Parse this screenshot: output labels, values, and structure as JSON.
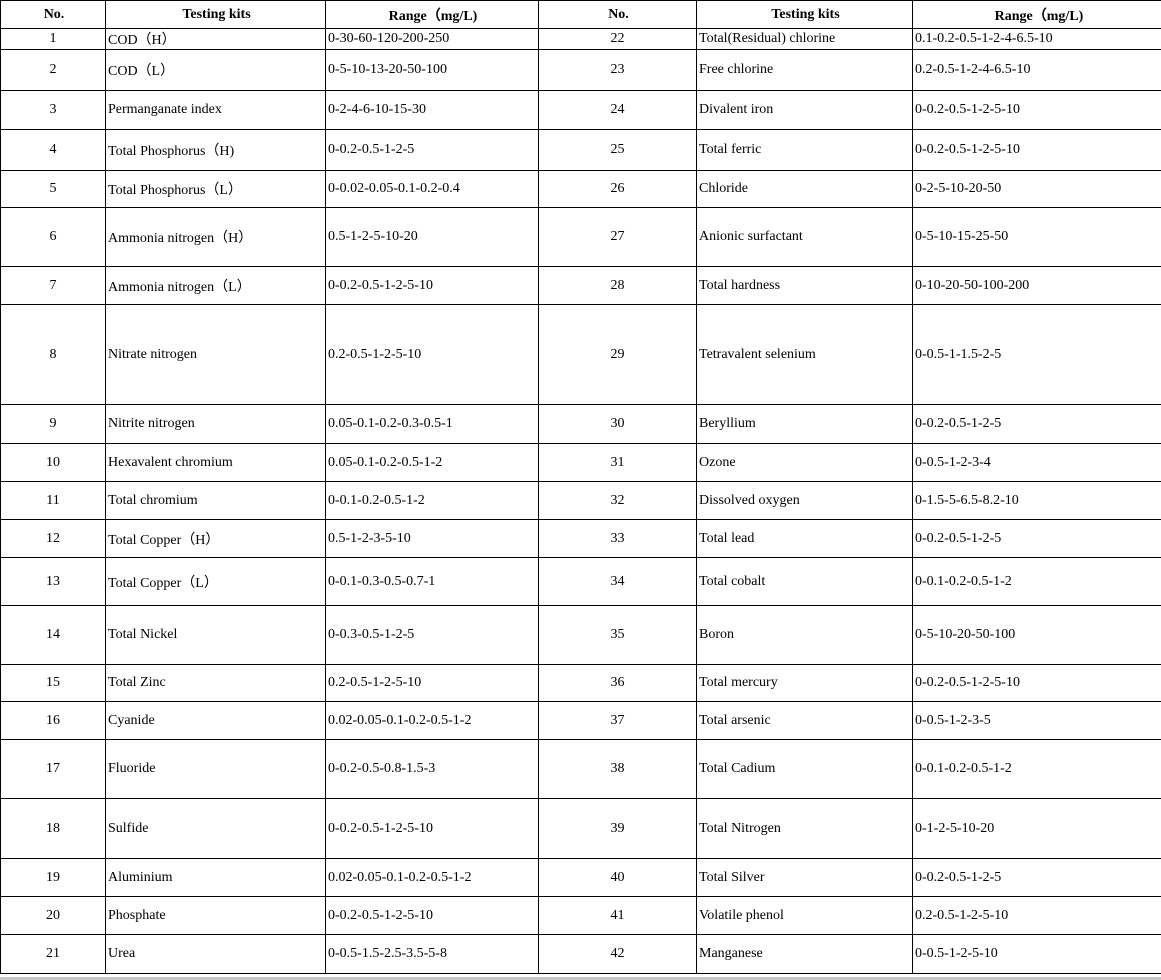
{
  "headers": {
    "no": "No.",
    "kit": "Testing kits",
    "range": "Range（mg/L)"
  },
  "rows": [
    {
      "l": {
        "no": "1",
        "kit": "COD（H）",
        "range": "0-30-60-120-200-250"
      },
      "r": {
        "no": "22",
        "kit": "Total(Residual) chlorine",
        "range": "0.1-0.2-0.5-1-2-4-6.5-10"
      }
    },
    {
      "l": {
        "no": "2",
        "kit": "COD（L）",
        "range": "0-5-10-13-20-50-100"
      },
      "r": {
        "no": "23",
        "kit": "Free chlorine",
        "range": "0.2-0.5-1-2-4-6.5-10"
      }
    },
    {
      "l": {
        "no": "3",
        "kit": "Permanganate index",
        "range": "0-2-4-6-10-15-30"
      },
      "r": {
        "no": "24",
        "kit": "Divalent iron",
        "range": "0-0.2-0.5-1-2-5-10"
      }
    },
    {
      "l": {
        "no": "4",
        "kit": "Total Phosphorus（H)",
        "range": "0-0.2-0.5-1-2-5"
      },
      "r": {
        "no": "25",
        "kit": "Total ferric",
        "range": "0-0.2-0.5-1-2-5-10"
      }
    },
    {
      "l": {
        "no": "5",
        "kit": "Total Phosphorus（L）",
        "range": "0-0.02-0.05-0.1-0.2-0.4"
      },
      "r": {
        "no": "26",
        "kit": "Chloride",
        "range": "0-2-5-10-20-50"
      }
    },
    {
      "l": {
        "no": "6",
        "kit": "Ammonia nitrogen（H）",
        "range": "0.5-1-2-5-10-20"
      },
      "r": {
        "no": "27",
        "kit": "Anionic surfactant",
        "range": "0-5-10-15-25-50"
      }
    },
    {
      "l": {
        "no": "7",
        "kit": "Ammonia nitrogen（L）",
        "range": "0-0.2-0.5-1-2-5-10"
      },
      "r": {
        "no": "28",
        "kit": "Total hardness",
        "range": "0-10-20-50-100-200"
      }
    },
    {
      "l": {
        "no": "8",
        "kit": "Nitrate nitrogen",
        "range": "0.2-0.5-1-2-5-10"
      },
      "r": {
        "no": "29",
        "kit": "Tetravalent selenium",
        "range": "0-0.5-1-1.5-2-5"
      }
    },
    {
      "l": {
        "no": "9",
        "kit": "Nitrite nitrogen",
        "range": "0.05-0.1-0.2-0.3-0.5-1"
      },
      "r": {
        "no": "30",
        "kit": "Beryllium",
        "range": "0-0.2-0.5-1-2-5"
      }
    },
    {
      "l": {
        "no": "10",
        "kit": "Hexavalent chromium",
        "range": "0.05-0.1-0.2-0.5-1-2"
      },
      "r": {
        "no": "31",
        "kit": "Ozone",
        "range": "0-0.5-1-2-3-4"
      }
    },
    {
      "l": {
        "no": "11",
        "kit": "Total chromium",
        "range": "0-0.1-0.2-0.5-1-2"
      },
      "r": {
        "no": "32",
        "kit": "Dissolved oxygen",
        "range": "0-1.5-5-6.5-8.2-10"
      }
    },
    {
      "l": {
        "no": "12",
        "kit": "Total Copper（H）",
        "range": "0.5-1-2-3-5-10"
      },
      "r": {
        "no": "33",
        "kit": "Total lead",
        "range": "0-0.2-0.5-1-2-5"
      }
    },
    {
      "l": {
        "no": "13",
        "kit": "Total Copper（L）",
        "range": "0-0.1-0.3-0.5-0.7-1"
      },
      "r": {
        "no": "34",
        "kit": "Total cobalt",
        "range": "0-0.1-0.2-0.5-1-2"
      }
    },
    {
      "l": {
        "no": "14",
        "kit": "Total Nickel",
        "range": "0-0.3-0.5-1-2-5"
      },
      "r": {
        "no": "35",
        "kit": "Boron",
        "range": "0-5-10-20-50-100"
      }
    },
    {
      "l": {
        "no": "15",
        "kit": "Total Zinc",
        "range": "0.2-0.5-1-2-5-10"
      },
      "r": {
        "no": "36",
        "kit": "Total mercury",
        "range": "0-0.2-0.5-1-2-5-10"
      }
    },
    {
      "l": {
        "no": "16",
        "kit": "Cyanide",
        "range": "0.02-0.05-0.1-0.2-0.5-1-2"
      },
      "r": {
        "no": "37",
        "kit": "Total arsenic",
        "range": "0-0.5-1-2-3-5"
      }
    },
    {
      "l": {
        "no": "17",
        "kit": "Fluoride",
        "range": "0-0.2-0.5-0.8-1.5-3"
      },
      "r": {
        "no": "38",
        "kit": "Total Cadium",
        "range": "0-0.1-0.2-0.5-1-2"
      }
    },
    {
      "l": {
        "no": "18",
        "kit": "Sulfide",
        "range": "0-0.2-0.5-1-2-5-10"
      },
      "r": {
        "no": "39",
        "kit": "Total Nitrogen",
        "range": "0-1-2-5-10-20"
      }
    },
    {
      "l": {
        "no": "19",
        "kit": "Aluminium",
        "range": "0.02-0.05-0.1-0.2-0.5-1-2"
      },
      "r": {
        "no": "40",
        "kit": "Total Silver",
        "range": "0-0.2-0.5-1-2-5"
      }
    },
    {
      "l": {
        "no": "20",
        "kit": "Phosphate",
        "range": "0-0.2-0.5-1-2-5-10"
      },
      "r": {
        "no": "41",
        "kit": "Volatile phenol",
        "range": "0.2-0.5-1-2-5-10"
      }
    },
    {
      "l": {
        "no": "21",
        "kit": "Urea",
        "range": "0-0.5-1.5-2.5-3.5-5-8"
      },
      "r": {
        "no": "42",
        "kit": "Manganese",
        "range": "0-0.5-1-2-5-10"
      }
    }
  ]
}
